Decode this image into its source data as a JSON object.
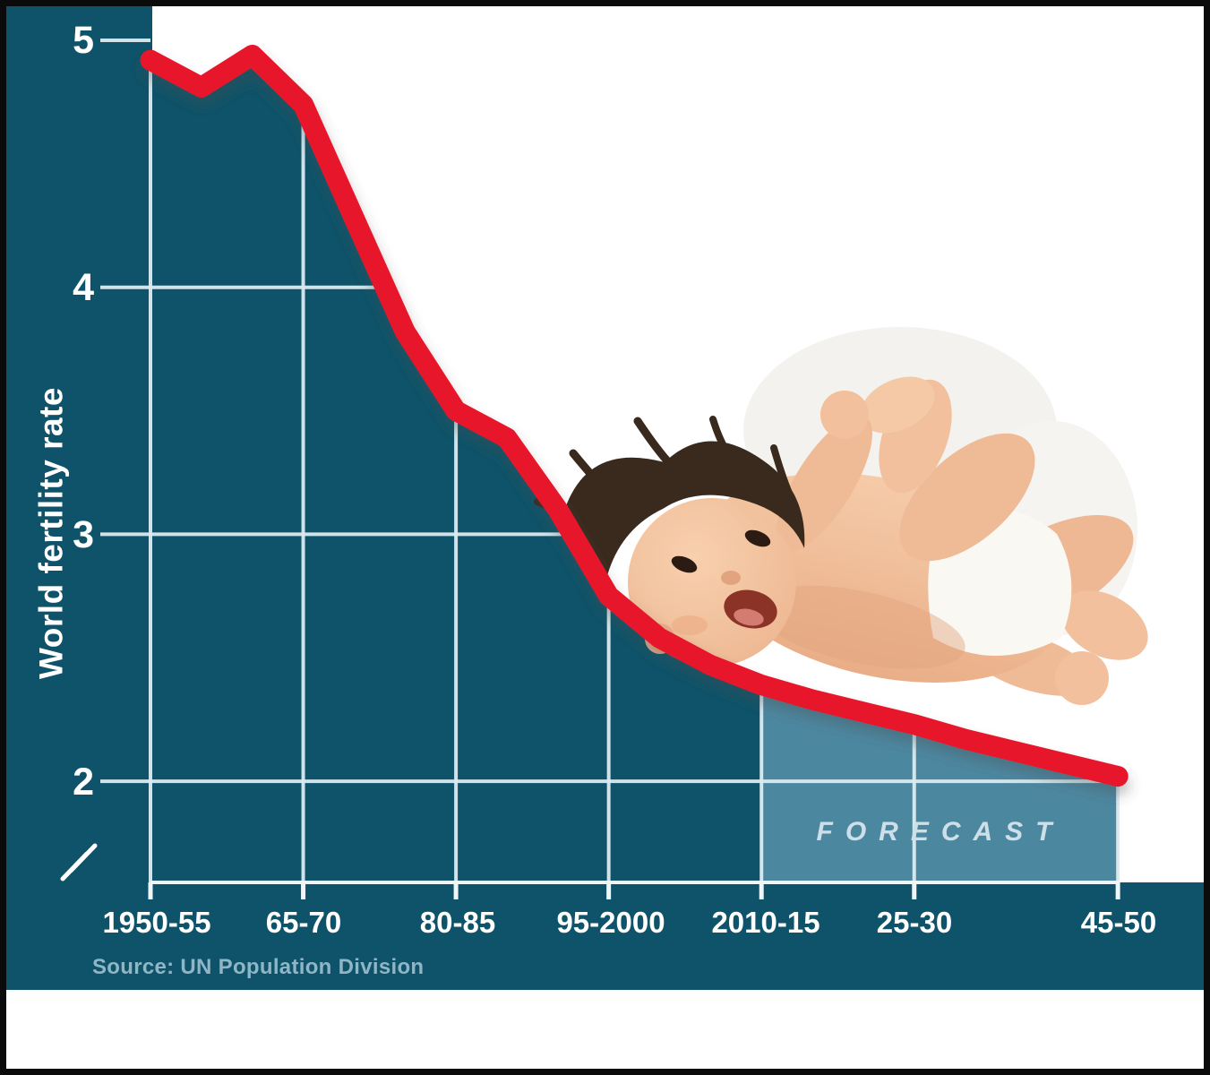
{
  "figure": {
    "y_axis": {
      "title": "World fertility rate",
      "ticks": [
        "5",
        "4",
        "3",
        "2"
      ]
    },
    "x_axis": {
      "labels": [
        "1950-55",
        "65-70",
        "80-85",
        "95-2000",
        "2010-15",
        "25-30",
        "45-50"
      ]
    },
    "forecast_label": "FORECAST",
    "source": "Source: UN Population Division"
  },
  "colors": {
    "area_dark": "#0e5369",
    "area_forecast": "#4c87a0",
    "line_red": "#e8182c",
    "gridline": "#dcebf0",
    "baseline": "#eff6f8",
    "frame_border": "#0b0b0b",
    "text_white": "#ffffff",
    "forecast_text": "#cde0e9",
    "source_text": "#8fb6c6"
  },
  "chart_data": {
    "type": "line",
    "title": "",
    "ylabel": "World fertility rate",
    "x": [
      "1950-55",
      "1955-60",
      "1960-65",
      "1965-70",
      "1970-75",
      "1975-80",
      "1980-85",
      "1985-90",
      "1990-95",
      "1995-2000",
      "2000-05",
      "2005-10",
      "2010-15",
      "2015-20",
      "2020-25",
      "2025-30",
      "2030-35",
      "2035-40",
      "2040-45",
      "2045-50"
    ],
    "values": [
      4.92,
      4.81,
      4.94,
      4.74,
      4.28,
      3.82,
      3.5,
      3.39,
      3.1,
      2.75,
      2.58,
      2.47,
      2.39,
      2.33,
      2.28,
      2.23,
      2.17,
      2.12,
      2.07,
      2.02
    ],
    "yticks": [
      5,
      4,
      3,
      2
    ],
    "ylim": [
      2,
      5
    ],
    "axis_break": true,
    "grid": true,
    "forecast_start_index": 12,
    "shown_xtick_indices": [
      0,
      3,
      6,
      9,
      12,
      15,
      19
    ],
    "annotations": [
      "FORECAST"
    ],
    "legend_position": "none"
  }
}
